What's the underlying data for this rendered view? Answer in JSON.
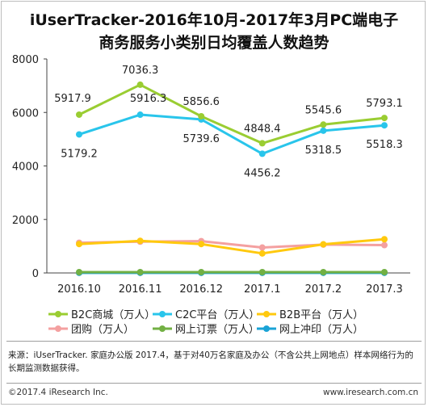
{
  "title_line1": "iUserTracker-2016年10月-2017年3月PC端电子",
  "title_line2": "商务服务小类别日均覆盖人数趋势",
  "source_text": "来源：iUserTracker. 家庭办公版 2017.4，基于对40万名家庭及办公（不含公共上网地点）样本网络行为的长期监测数据获得。",
  "copyright": "©2017.4 iResearch Inc.",
  "website": "www.iresearch.com.cn",
  "chart_data": {
    "type": "line",
    "categories": [
      "2016.10",
      "2016.11",
      "2016.12",
      "2017.1",
      "2017.2",
      "2017.3"
    ],
    "ylim": [
      0,
      8000
    ],
    "yticks": [
      0,
      2000,
      4000,
      6000,
      8000
    ],
    "grid": false,
    "legend_position": "bottom",
    "series": [
      {
        "name": "B2C商城（万人）",
        "color": "#9ACD32",
        "values": [
          5917.9,
          7036.3,
          5856.6,
          4848.4,
          5545.6,
          5793.1
        ],
        "labels": [
          "5917.9",
          "7036.3",
          "5856.6",
          "4848.4",
          "5545.6",
          "5793.1"
        ]
      },
      {
        "name": "C2C平台（万人）",
        "color": "#29C5EB",
        "values": [
          5179.2,
          5916.3,
          5739.6,
          4456.2,
          5318.5,
          5518.3
        ],
        "labels": [
          "5179.2",
          "5916.3",
          "5739.6",
          "4456.2",
          "5318.5",
          "5518.3"
        ]
      },
      {
        "name": "B2B平台（万人）",
        "color": "#FFC90E",
        "values": [
          1080,
          1200,
          1080,
          730,
          1070,
          1260
        ]
      },
      {
        "name": "团购（万人）",
        "color": "#F4A0A0",
        "values": [
          1130,
          1170,
          1190,
          950,
          1060,
          1040
        ]
      },
      {
        "name": "网上订票（万人）",
        "color": "#72B043",
        "values": [
          30,
          30,
          30,
          30,
          30,
          30
        ]
      },
      {
        "name": "网上冲印（万人）",
        "color": "#1AA3D6",
        "values": [
          5,
          5,
          5,
          5,
          5,
          5
        ]
      }
    ]
  }
}
